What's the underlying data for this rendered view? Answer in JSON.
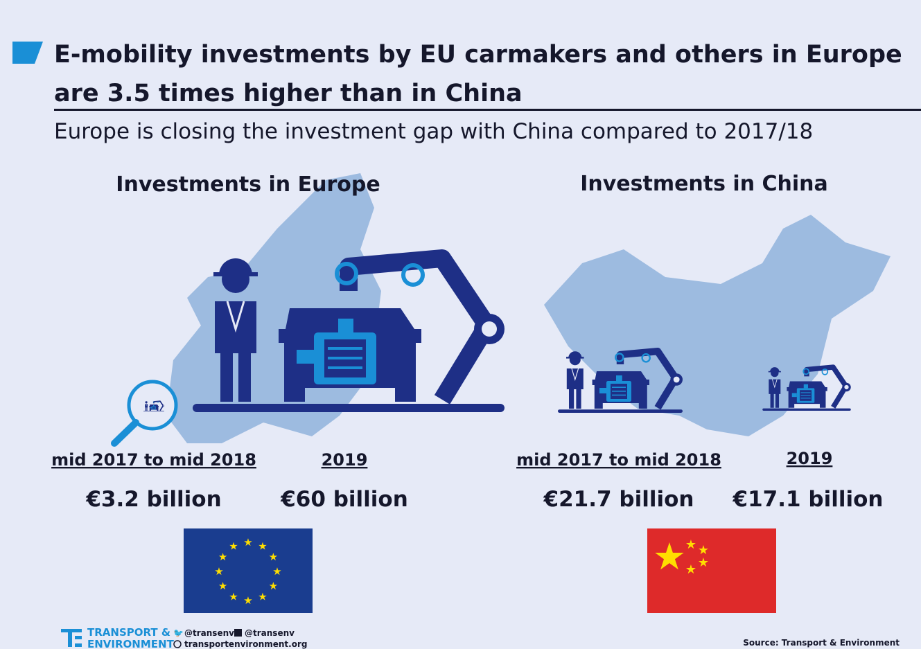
{
  "header": {
    "title": "E-mobility investments by EU carmakers and others in Europe are 3.5 times higher than in China",
    "subtitle": "Europe is closing the investment gap with China compared to 2017/18"
  },
  "panels": [
    {
      "heading": "Investments in Europe",
      "periods": [
        {
          "label": "mid 2017 to mid 2018",
          "amount": "€3.2 billion"
        },
        {
          "label": "2019",
          "amount": "€60 billion"
        }
      ]
    },
    {
      "heading": "Investments in China",
      "periods": [
        {
          "label": "mid 2017 to mid 2018",
          "amount": "€21.7 billion"
        },
        {
          "label": "2019",
          "amount": "€17.1 billion"
        }
      ]
    }
  ],
  "footer": {
    "logo_line1": "TRANSPORT &",
    "logo_line2": "ENVIRONMENT",
    "twitter": "@transenv",
    "facebook": "@transenv",
    "website": "transportenvironment.org",
    "source": "Source: Transport & Environment"
  }
}
